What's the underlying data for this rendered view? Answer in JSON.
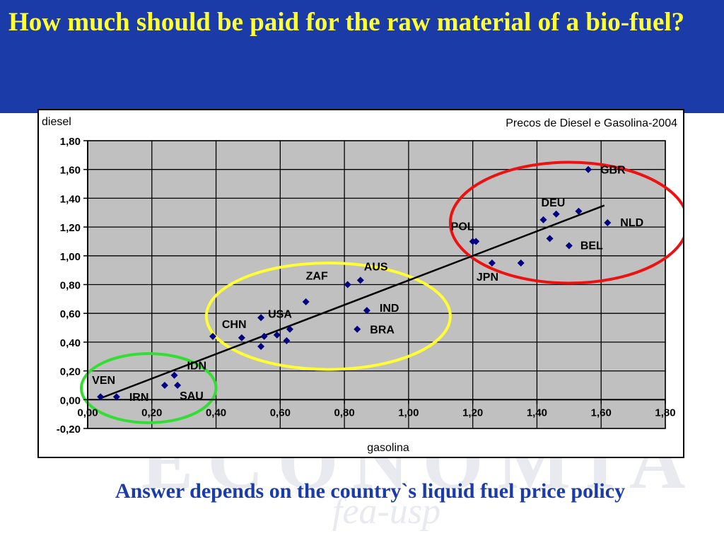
{
  "slide": {
    "title": "How much should be paid for the raw material of a bio-fuel?",
    "footer": "Answer depends on the country`s liquid fuel price policy",
    "watermark_text": "ECONOMIA fea-usp"
  },
  "colors": {
    "banner": "#1a3ba8",
    "title_text": "#ffff33",
    "footer_text": "#1a3ba8",
    "plot_area": "#c0c0c0",
    "marker": "#000080",
    "trendline": "#000000",
    "circle_low": "#33dd33",
    "circle_mid": "#ffff33",
    "circle_high": "#ee1111"
  },
  "chart_data": {
    "type": "scatter",
    "title": "Precos de Diesel e Gasolina-2004",
    "xlabel": "gasolina",
    "ylabel": "diesel",
    "xlim": [
      0,
      1.8
    ],
    "ylim": [
      -0.2,
      1.8
    ],
    "x_tick_labels": [
      "0,00",
      "0,20",
      "0,40",
      "0,60",
      "0,80",
      "1,00",
      "1,20",
      "1,40",
      "1,60",
      "1,80"
    ],
    "y_tick_labels": [
      "-0,20",
      "0,00",
      "0,20",
      "0,40",
      "0,60",
      "0,80",
      "1,00",
      "1,20",
      "1,40",
      "1,60",
      "1,80"
    ],
    "grid": true,
    "points": [
      {
        "x": 0.04,
        "y": 0.02,
        "label": "VEN"
      },
      {
        "x": 0.09,
        "y": 0.02,
        "label": "IRN"
      },
      {
        "x": 0.27,
        "y": 0.17,
        "label": "IDN"
      },
      {
        "x": 0.24,
        "y": 0.1,
        "label": ""
      },
      {
        "x": 0.28,
        "y": 0.1,
        "label": "SAU"
      },
      {
        "x": 0.39,
        "y": 0.44,
        "label": ""
      },
      {
        "x": 0.48,
        "y": 0.43,
        "label": "CHN"
      },
      {
        "x": 0.54,
        "y": 0.57,
        "label": "USA"
      },
      {
        "x": 0.54,
        "y": 0.37,
        "label": ""
      },
      {
        "x": 0.55,
        "y": 0.44,
        "label": ""
      },
      {
        "x": 0.59,
        "y": 0.45,
        "label": ""
      },
      {
        "x": 0.62,
        "y": 0.41,
        "label": ""
      },
      {
        "x": 0.63,
        "y": 0.49,
        "label": ""
      },
      {
        "x": 0.68,
        "y": 0.68,
        "label": ""
      },
      {
        "x": 0.81,
        "y": 0.8,
        "label": "ZAF"
      },
      {
        "x": 0.85,
        "y": 0.83,
        "label": "AUS"
      },
      {
        "x": 0.87,
        "y": 0.62,
        "label": "IND"
      },
      {
        "x": 0.84,
        "y": 0.49,
        "label": "BRA"
      },
      {
        "x": 1.2,
        "y": 1.1,
        "label": "POL"
      },
      {
        "x": 1.21,
        "y": 1.1,
        "label": ""
      },
      {
        "x": 1.26,
        "y": 0.95,
        "label": "JPN"
      },
      {
        "x": 1.35,
        "y": 0.95,
        "label": ""
      },
      {
        "x": 1.42,
        "y": 1.25,
        "label": "DEU"
      },
      {
        "x": 1.46,
        "y": 1.29,
        "label": ""
      },
      {
        "x": 1.53,
        "y": 1.31,
        "label": ""
      },
      {
        "x": 1.44,
        "y": 1.12,
        "label": ""
      },
      {
        "x": 1.5,
        "y": 1.07,
        "label": "BEL"
      },
      {
        "x": 1.56,
        "y": 1.6,
        "label": "GBR"
      },
      {
        "x": 1.62,
        "y": 1.23,
        "label": "NLD"
      }
    ],
    "trendline": {
      "from": [
        0.04,
        0.01
      ],
      "to": [
        1.61,
        1.35
      ]
    },
    "groups": [
      {
        "name": "low",
        "center": [
          0.19,
          0.08
        ],
        "radii": [
          0.21,
          0.24
        ]
      },
      {
        "name": "mid",
        "center": [
          0.75,
          0.58
        ],
        "radii": [
          0.38,
          0.37
        ]
      },
      {
        "name": "high",
        "center": [
          1.5,
          1.23
        ],
        "radii": [
          0.37,
          0.42
        ]
      }
    ]
  }
}
